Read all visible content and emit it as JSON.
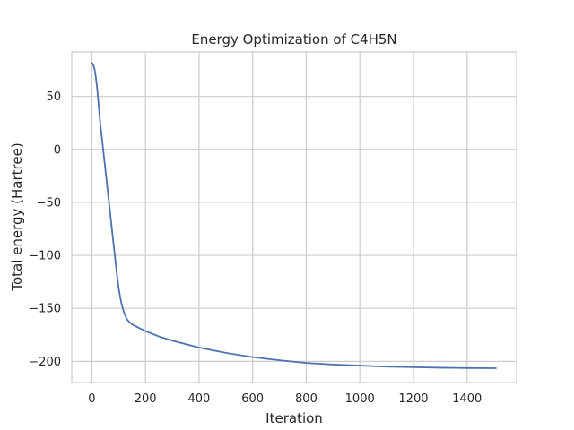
{
  "chart_data": {
    "type": "line",
    "title": "Energy Optimization of C4H5N",
    "xlabel": "Iteration",
    "ylabel": "Total energy (Hartree)",
    "xlim": [
      -75,
      1585
    ],
    "ylim": [
      -220,
      92
    ],
    "x_ticks": [
      0,
      200,
      400,
      600,
      800,
      1000,
      1200,
      1400
    ],
    "y_ticks": [
      50,
      0,
      -50,
      -100,
      -150,
      -200
    ],
    "grid": true,
    "line_color": "#4c72b0",
    "series": [
      {
        "x": [
          0,
          5,
          10,
          15,
          20,
          25,
          30,
          40,
          50,
          60,
          70,
          80,
          90,
          100,
          110,
          120,
          130,
          140,
          150,
          160,
          180,
          200,
          250,
          300,
          400,
          500,
          600,
          700,
          800,
          900,
          1000,
          1100,
          1200,
          1300,
          1400,
          1510
        ],
        "y": [
          82,
          80,
          76,
          68,
          57,
          43,
          28,
          5,
          -18,
          -41,
          -64,
          -87,
          -110,
          -131,
          -145,
          -154,
          -160,
          -163,
          -165,
          -166.5,
          -169,
          -171.5,
          -176.5,
          -180.5,
          -187,
          -192,
          -196,
          -199,
          -201.5,
          -203,
          -204,
          -205,
          -205.5,
          -206,
          -206.3,
          -206.5
        ]
      }
    ]
  }
}
